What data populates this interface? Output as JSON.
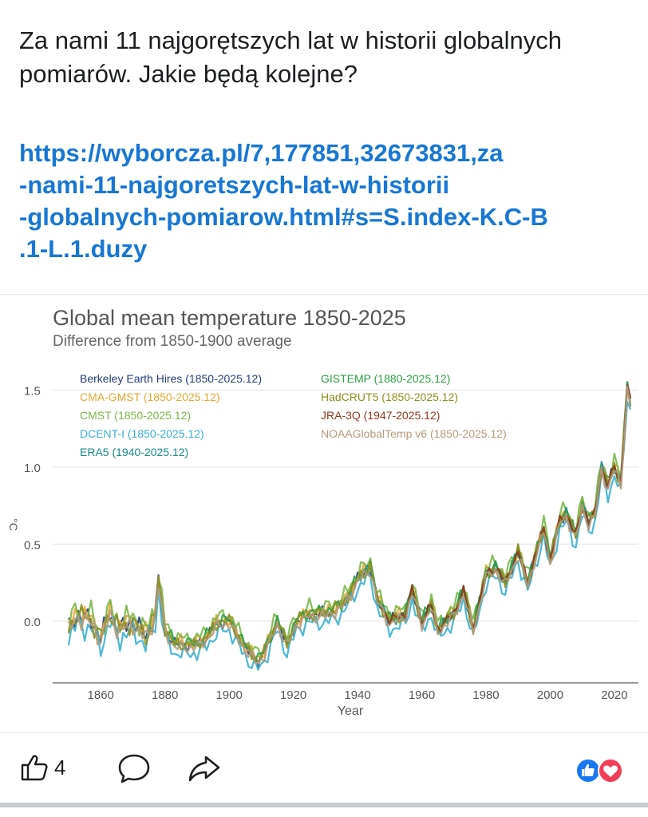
{
  "post": {
    "text": "Za nami 11 najgorętszych lat w historii globalnych pomiarów. Jakie będą kolejne?",
    "link_lines": [
      "https://wyborcza.pl/7,177851,32673831,za",
      "-nami-11-najgoretszych-lat-w-historii",
      "-globalnych-pomiarow.html#s=S.index-K.C-B",
      ".1-L.1.duzy"
    ]
  },
  "actions": {
    "like_count": "4",
    "like_icon": "thumbs-up-icon",
    "comment_icon": "comment-icon",
    "share_icon": "share-icon",
    "reactions": [
      "like-reaction-icon",
      "love-reaction-icon"
    ],
    "colors": {
      "like": "#1877f2",
      "love": "#f33e58"
    }
  },
  "chart_data": {
    "type": "line",
    "title": "Global mean temperature 1850-2025",
    "subtitle": "Difference from 1850-1900 average",
    "xlabel": "Year",
    "ylabel": "°C",
    "xlim": [
      1850,
      2025
    ],
    "ylim": [
      -0.4,
      1.6
    ],
    "xticks": [
      1860,
      1880,
      1900,
      1920,
      1940,
      1960,
      1980,
      2000,
      2020
    ],
    "yticks": [
      0.0,
      0.5,
      1.0,
      1.5
    ],
    "ytick_labels": [
      "0.0",
      "0.5",
      "1.0",
      "1.5"
    ],
    "grid": "horizontal",
    "legend_position": "top-left",
    "anchors": {
      "x": [
        1850,
        1853,
        1857,
        1860,
        1863,
        1866,
        1870,
        1874,
        1877,
        1878,
        1880,
        1883,
        1887,
        1890,
        1893,
        1897,
        1900,
        1903,
        1906,
        1909,
        1911,
        1915,
        1918,
        1921,
        1925,
        1930,
        1935,
        1938,
        1941,
        1944,
        1946,
        1950,
        1955,
        1957,
        1960,
        1963,
        1965,
        1970,
        1973,
        1976,
        1980,
        1983,
        1986,
        1990,
        1993,
        1995,
        1998,
        2000,
        2003,
        2005,
        2008,
        2010,
        2012,
        2014,
        2016,
        2018,
        2020,
        2022,
        2023,
        2024,
        2025
      ],
      "y": [
        -0.05,
        0.05,
        0.0,
        -0.1,
        0.05,
        -0.05,
        0.0,
        -0.1,
        0.05,
        0.25,
        -0.05,
        -0.15,
        -0.15,
        -0.15,
        -0.1,
        0.0,
        0.0,
        -0.1,
        -0.2,
        -0.25,
        -0.2,
        0.0,
        -0.15,
        0.0,
        0.05,
        0.05,
        0.1,
        0.2,
        0.3,
        0.35,
        0.15,
        0.0,
        0.05,
        0.2,
        0.0,
        0.1,
        -0.05,
        0.05,
        0.2,
        -0.05,
        0.3,
        0.35,
        0.25,
        0.45,
        0.25,
        0.4,
        0.6,
        0.4,
        0.65,
        0.7,
        0.55,
        0.75,
        0.65,
        0.7,
        1.0,
        0.88,
        1.0,
        0.9,
        1.2,
        1.52,
        1.42
      ]
    },
    "series": [
      {
        "name": "Berkeley Earth Hires (1850-2025.12)",
        "color": "#233d7a",
        "offset": 0.0,
        "noise": 0.05,
        "start": 1850
      },
      {
        "name": "CMA-GMST (1850-2025.12)",
        "color": "#e8a530",
        "offset": 0.01,
        "noise": 0.06,
        "start": 1850
      },
      {
        "name": "CMST (1850-2025.12)",
        "color": "#7ab648",
        "offset": 0.04,
        "noise": 0.06,
        "start": 1850
      },
      {
        "name": "DCENT-I (1850-2025.12)",
        "color": "#3bb0cf",
        "offset": -0.06,
        "noise": 0.06,
        "start": 1850
      },
      {
        "name": "ERA5 (1940-2025.12)",
        "color": "#168a85",
        "offset": 0.0,
        "noise": 0.04,
        "start": 1940
      },
      {
        "name": "GISTEMP (1880-2025.12)",
        "color": "#2f9e44",
        "offset": 0.01,
        "noise": 0.05,
        "start": 1880
      },
      {
        "name": "HadCRUT5 (1850-2025.12)",
        "color": "#8f8f1f",
        "offset": 0.0,
        "noise": 0.05,
        "start": 1850
      },
      {
        "name": "JRA-3Q (1947-2025.12)",
        "color": "#8b3a1e",
        "offset": 0.0,
        "noise": 0.04,
        "start": 1947
      },
      {
        "name": "NOAAGlobalTemp v6 (1850-2025.12)",
        "color": "#b59a7c",
        "offset": -0.02,
        "noise": 0.05,
        "start": 1850
      }
    ]
  }
}
